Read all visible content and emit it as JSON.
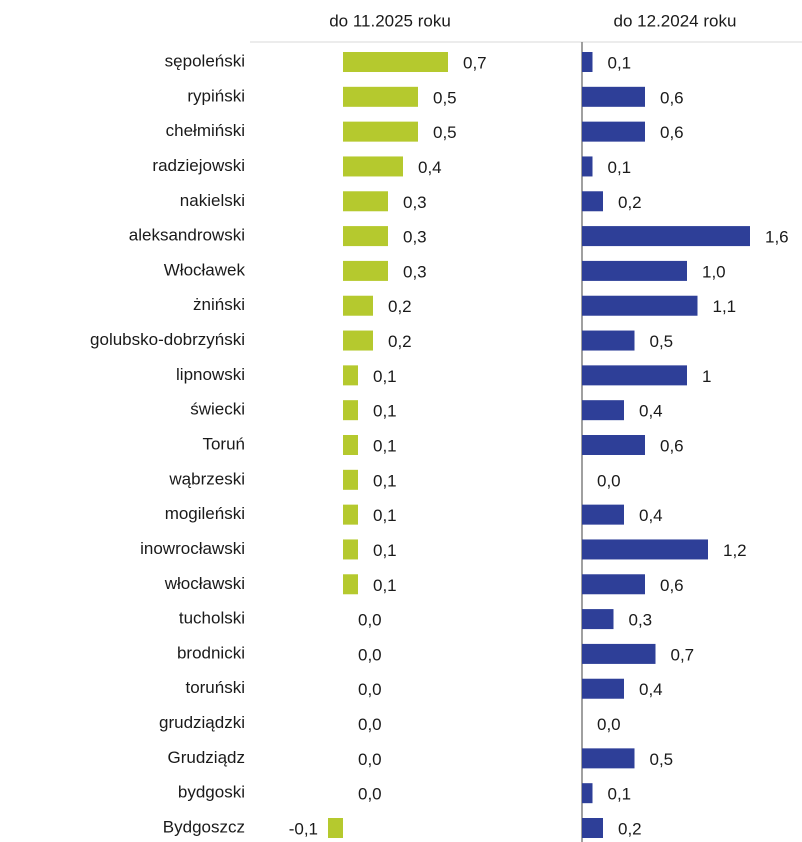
{
  "chart_data": {
    "type": "bar",
    "orientation": "horizontal",
    "categories": [
      "sępoleński",
      "rypiński",
      "chełmiński",
      "radziejowski",
      "nakielski",
      "aleksandrowski",
      "Włocławek",
      "żniński",
      "golubsko-dobrzyński",
      "lipnowski",
      "świecki",
      "Toruń",
      "wąbrzeski",
      "mogileński",
      "inowrocławski",
      "włocławski",
      "tucholski",
      "brodnicki",
      "toruński",
      "grudziądzki",
      "Grudziądz",
      "bydgoski",
      "Bydgoszcz"
    ],
    "series": [
      {
        "name": "do 11.2025 roku",
        "color": "#b5c92e",
        "xlim": [
          -0.5,
          1.0
        ],
        "values": [
          0.7,
          0.5,
          0.5,
          0.4,
          0.3,
          0.3,
          0.3,
          0.2,
          0.2,
          0.1,
          0.1,
          0.1,
          0.1,
          0.1,
          0.1,
          0.1,
          0.0,
          0.0,
          0.0,
          0.0,
          0.0,
          0.0,
          -0.1
        ],
        "value_labels": [
          "0,7",
          "0,5",
          "0,5",
          "0,4",
          "0,3",
          "0,3",
          "0,3",
          "0,2",
          "0,2",
          "0,1",
          "0,1",
          "0,1",
          "0,1",
          "0,1",
          "0,1",
          "0,1",
          "0,0",
          "0,0",
          "0,0",
          "0,0",
          "0,0",
          "0,0",
          "-0,1"
        ]
      },
      {
        "name": "do 12.2024 roku",
        "color": "#2e3f98",
        "xlim": [
          0,
          2
        ],
        "values": [
          0.1,
          0.6,
          0.6,
          0.1,
          0.2,
          1.6,
          1.0,
          1.1,
          0.5,
          1,
          0.4,
          0.6,
          0.0,
          0.4,
          1.2,
          0.6,
          0.3,
          0.7,
          0.4,
          0.0,
          0.5,
          0.1,
          0.2
        ],
        "value_labels": [
          "0,1",
          "0,6",
          "0,6",
          "0,1",
          "0,2",
          "1,6",
          "1,0",
          "1,1",
          "0,5",
          "1",
          "0,4",
          "0,6",
          "0,0",
          "0,4",
          "1,2",
          "0,6",
          "0,3",
          "0,7",
          "0,4",
          "0,0",
          "0,5",
          "0,1",
          "0,2"
        ]
      }
    ]
  }
}
